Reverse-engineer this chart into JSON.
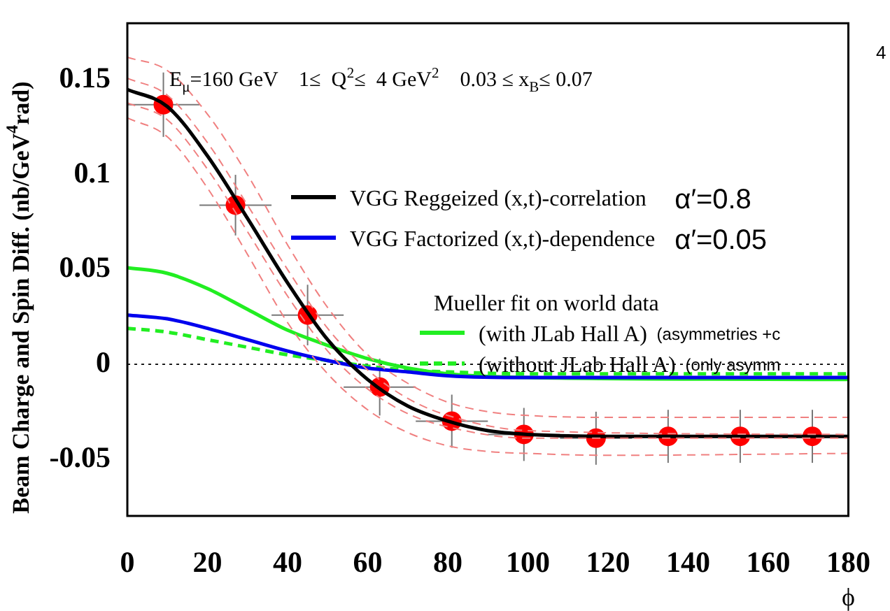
{
  "chart_data": {
    "type": "line",
    "ylabel": "Beam Charge and Spin Diff. (nb/GeV$^{4}$rad)",
    "xlabel": "ϕ",
    "legend_title": "Mueller fit on world data",
    "legend": "center",
    "marker": "none",
    "grid": false,
    "xlim": [
      0,
      180
    ],
    "xticks": [
      0,
      20,
      40,
      60,
      80,
      100,
      120,
      140,
      160,
      180
    ],
    "ylim": [
      -0.08,
      0.18
    ],
    "yticks": [
      {
        "value": -0.05,
        "label": "-0.05"
      },
      0,
      0.05,
      0.1,
      0.15
    ],
    "ref_lines": [
      {
        "axis": "y",
        "value": 0,
        "color": "#000000",
        "line_style": "dotted"
      }
    ],
    "annotations": [
      "E$_{μ}$=160 GeV    1≤  Q$^{2}$≤  4 GeV$^{2}$    0.03 ≤ x$_{B}$≤ 0.07",
      "α′=0.8",
      "α′=0.05",
      "(asymmetries +c",
      "(only asymm",
      "4"
    ],
    "series": [
      {
        "type": "line",
        "color": "#f08080",
        "line_style": "dashed",
        "x": [
          0,
          10,
          20,
          30,
          40,
          50,
          60,
          70,
          80,
          90,
          100,
          120,
          180
        ],
        "values": [
          0.162,
          0.155,
          0.132,
          0.1,
          0.063,
          0.03,
          0.005,
          -0.01,
          -0.02,
          -0.025,
          -0.027,
          -0.028,
          -0.028
        ]
      },
      {
        "type": "line",
        "color": "#f08080",
        "line_style": "dashed",
        "x": [
          0,
          10,
          20,
          30,
          40,
          50,
          60,
          70,
          80,
          100,
          180
        ],
        "values": [
          0.151,
          0.142,
          0.117,
          0.084,
          0.05,
          0.019,
          -0.003,
          -0.018,
          -0.027,
          -0.035,
          -0.037
        ]
      },
      {
        "type": "line",
        "color": "#f08080",
        "line_style": "dashed",
        "x": [
          0,
          10,
          20,
          30,
          40,
          50,
          60,
          70,
          80,
          100,
          180
        ],
        "values": [
          0.138,
          0.129,
          0.103,
          0.07,
          0.036,
          0.007,
          -0.013,
          -0.026,
          -0.033,
          -0.039,
          -0.039
        ]
      },
      {
        "type": "line",
        "color": "#f08080",
        "line_style": "dashed",
        "x": [
          0,
          10,
          20,
          30,
          40,
          50,
          60,
          70,
          80,
          90,
          100,
          120,
          180
        ],
        "values": [
          0.13,
          0.12,
          0.093,
          0.058,
          0.022,
          -0.005,
          -0.024,
          -0.036,
          -0.043,
          -0.046,
          -0.047,
          -0.048,
          -0.047
        ]
      },
      {
        "type": "line",
        "name": "VGG Reggeized (x,t)-correlation",
        "color": "#000000",
        "line_style": "solid",
        "x": [
          0,
          10,
          20,
          30,
          40,
          50,
          60,
          70,
          80,
          90,
          100,
          120,
          140,
          160,
          180
        ],
        "values": [
          0.145,
          0.136,
          0.11,
          0.077,
          0.043,
          0.013,
          -0.008,
          -0.022,
          -0.03,
          -0.035,
          -0.037,
          -0.038,
          -0.038,
          -0.038,
          -0.038
        ]
      },
      {
        "type": "line",
        "name": "VGG Factorized (x,t)-dependence",
        "color": "#0000ee",
        "line_style": "solid",
        "x": [
          0,
          10,
          20,
          30,
          40,
          50,
          60,
          70,
          80,
          100,
          180
        ],
        "values": [
          0.026,
          0.024,
          0.019,
          0.013,
          0.007,
          0.002,
          -0.002,
          -0.004,
          -0.006,
          -0.007,
          -0.007
        ]
      },
      {
        "type": "line",
        "name": "(with JLab Hall A)",
        "color": "#22ee22",
        "line_style": "solid",
        "x": [
          0,
          10,
          20,
          30,
          40,
          50,
          60,
          70,
          80,
          100,
          180
        ],
        "values": [
          0.051,
          0.048,
          0.04,
          0.029,
          0.018,
          0.01,
          0.003,
          -0.002,
          -0.005,
          -0.007,
          -0.008
        ]
      },
      {
        "type": "line",
        "name": "(without JLab Hall A)",
        "color": "#22ee22",
        "line_style": "dashed",
        "x": [
          0,
          10,
          20,
          30,
          40,
          50,
          60,
          70,
          80,
          100,
          180
        ],
        "values": [
          0.019,
          0.017,
          0.013,
          0.009,
          0.005,
          0.002,
          -0.001,
          -0.003,
          -0.004,
          -0.005,
          -0.005
        ]
      },
      {
        "type": "scatter",
        "color": "#ff0000",
        "marker": "circle",
        "x": [
          9,
          27,
          45,
          63,
          81,
          99,
          117,
          135,
          153,
          171
        ],
        "values": [
          0.137,
          0.084,
          0.026,
          -0.012,
          -0.03,
          -0.037,
          -0.039,
          -0.038,
          -0.038,
          -0.038
        ],
        "errors": [
          0.017,
          0.016,
          0.016,
          0.015,
          0.014,
          0.014,
          0.014,
          0.014,
          0.014,
          0.014
        ],
        "xerrors": [
          9,
          9,
          9,
          9,
          9,
          9,
          9,
          9,
          9,
          9
        ]
      }
    ]
  }
}
